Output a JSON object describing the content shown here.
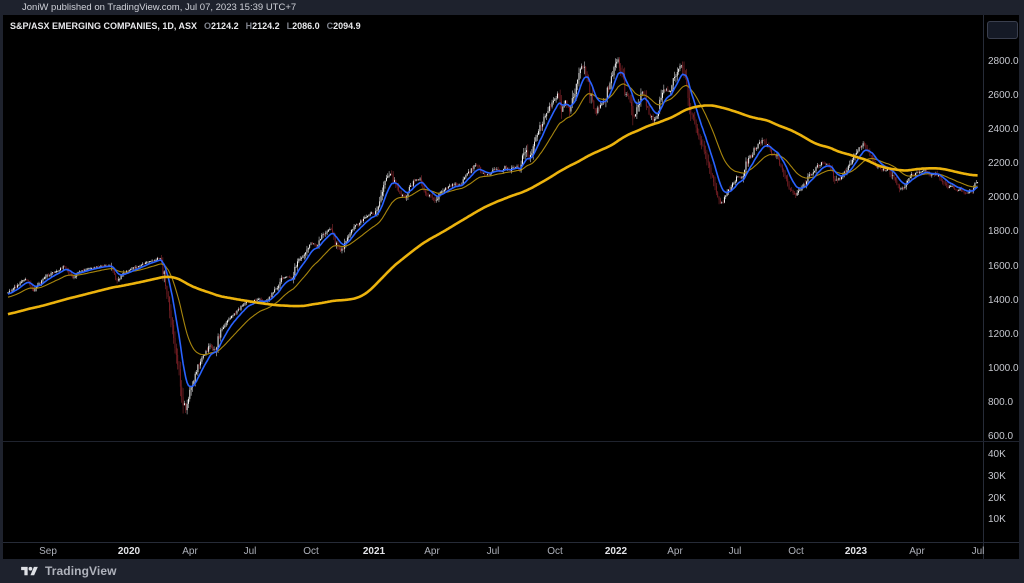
{
  "header": {
    "published_line": "JoniW published on TradingView.com, Jul 07, 2023 15:39 UTC+7"
  },
  "legend": {
    "symbol": "S&P/ASX EMERGING COMPANIES, 1D, ASX",
    "ohlc": [
      {
        "k": "O",
        "v": "2124.2"
      },
      {
        "k": "H",
        "v": "2124.2"
      },
      {
        "k": "L",
        "v": "2086.0"
      },
      {
        "k": "C",
        "v": "2094.9"
      }
    ]
  },
  "footer": {
    "brand": "TradingView"
  },
  "chart_data": {
    "type": "candlestick",
    "title": "S&P/ASX EMERGING COMPANIES",
    "timeframe": "1D",
    "exchange": "ASX",
    "last_ohlc": {
      "o": 2124.2,
      "h": 2124.2,
      "l": 2086.0,
      "c": 2094.9
    },
    "colors": {
      "up": "#ffffff",
      "up_wick": "#d9dadd",
      "down": "#7e1d24",
      "down_wick": "#932b32"
    },
    "price_axis": {
      "ticks": [
        "2800.0",
        "2600.0",
        "2400.0",
        "2200.0",
        "2000.0",
        "1800.0",
        "1600.0",
        "1400.0",
        "1200.0",
        "1000.0",
        "800.0",
        "600.0"
      ],
      "range": [
        600,
        2800
      ]
    },
    "volume_axis": {
      "ticks": [
        [
          "40K",
          455
        ],
        [
          "30K",
          477
        ],
        [
          "20K",
          499
        ],
        [
          "10K",
          520
        ]
      ],
      "bars_visible": false
    },
    "time_axis": {
      "unit": "months since 2019-07",
      "ticks": [
        [
          "Sep",
          2,
          0
        ],
        [
          "2020",
          6,
          1
        ],
        [
          "Apr",
          9,
          0
        ],
        [
          "Jul",
          12,
          0
        ],
        [
          "Oct",
          15,
          0
        ],
        [
          "2021",
          18.1,
          1
        ],
        [
          "Apr",
          21,
          0
        ],
        [
          "Jul",
          24,
          0
        ],
        [
          "Oct",
          27.1,
          0
        ],
        [
          "2022",
          30.1,
          1
        ],
        [
          "Apr",
          33,
          0
        ],
        [
          "Jul",
          36,
          0
        ],
        [
          "Oct",
          39,
          0
        ],
        [
          "2023",
          42,
          1
        ],
        [
          "Apr",
          45,
          0
        ],
        [
          "Jul",
          48,
          0
        ]
      ]
    },
    "overlays": [
      {
        "name": "ma-fast",
        "kind": "ema",
        "span_candles": 10,
        "color": "#2962ff",
        "width": 1.6
      },
      {
        "name": "ma-medium",
        "kind": "ema",
        "span_candles": 30,
        "color": "#a8860d",
        "width": 1.1
      },
      {
        "name": "ma-slow",
        "kind": "sma",
        "span_candles": 142,
        "color": "#ecb30d",
        "width": 2.6
      }
    ],
    "close_path": [
      [
        0,
        1445
      ],
      [
        0.59,
        1500
      ],
      [
        0.89,
        1530
      ],
      [
        1.24,
        1457
      ],
      [
        1.93,
        1545
      ],
      [
        2.48,
        1580
      ],
      [
        2.82,
        1604
      ],
      [
        3.17,
        1532
      ],
      [
        3.56,
        1570
      ],
      [
        4.06,
        1590
      ],
      [
        4.55,
        1600
      ],
      [
        5.05,
        1610
      ],
      [
        5.4,
        1510
      ],
      [
        5.74,
        1560
      ],
      [
        6.19,
        1590
      ],
      [
        6.68,
        1615
      ],
      [
        7.03,
        1632
      ],
      [
        7.38,
        1645
      ],
      [
        7.57,
        1650
      ],
      [
        7.77,
        1515
      ],
      [
        8.02,
        1356
      ],
      [
        8.27,
        1143
      ],
      [
        8.51,
        926
      ],
      [
        8.66,
        808
      ],
      [
        8.81,
        755
      ],
      [
        9.01,
        867
      ],
      [
        9.26,
        967
      ],
      [
        9.5,
        1044
      ],
      [
        9.75,
        1085
      ],
      [
        10,
        1143
      ],
      [
        10.25,
        1103
      ],
      [
        10.5,
        1220
      ],
      [
        10.74,
        1261
      ],
      [
        10.99,
        1297
      ],
      [
        11.29,
        1330
      ],
      [
        11.49,
        1356
      ],
      [
        11.78,
        1400
      ],
      [
        12.08,
        1390
      ],
      [
        12.38,
        1415
      ],
      [
        12.67,
        1385
      ],
      [
        12.97,
        1420
      ],
      [
        13.27,
        1470
      ],
      [
        13.56,
        1535
      ],
      [
        13.86,
        1540
      ],
      [
        14.06,
        1532
      ],
      [
        14.31,
        1625
      ],
      [
        14.6,
        1660
      ],
      [
        14.85,
        1720
      ],
      [
        15.1,
        1735
      ],
      [
        15.3,
        1720
      ],
      [
        15.54,
        1780
      ],
      [
        15.79,
        1812
      ],
      [
        15.99,
        1821
      ],
      [
        16.24,
        1732
      ],
      [
        16.49,
        1685
      ],
      [
        16.73,
        1755
      ],
      [
        16.98,
        1809
      ],
      [
        17.23,
        1840
      ],
      [
        17.48,
        1868
      ],
      [
        17.72,
        1897
      ],
      [
        17.97,
        1912
      ],
      [
        18.17,
        1909
      ],
      [
        18.42,
        2004
      ],
      [
        18.66,
        2086
      ],
      [
        18.91,
        2151
      ],
      [
        19.16,
        2086
      ],
      [
        19.41,
        2033
      ],
      [
        19.65,
        2004
      ],
      [
        19.9,
        2063
      ],
      [
        20.15,
        2104
      ],
      [
        20.4,
        2115
      ],
      [
        20.64,
        2033
      ],
      [
        20.89,
        2016
      ],
      [
        21.14,
        1978
      ],
      [
        21.39,
        2027
      ],
      [
        21.63,
        2057
      ],
      [
        21.88,
        2074
      ],
      [
        22.13,
        2086
      ],
      [
        22.38,
        2074
      ],
      [
        22.62,
        2115
      ],
      [
        22.87,
        2162
      ],
      [
        23.12,
        2203
      ],
      [
        23.37,
        2174
      ],
      [
        23.61,
        2133
      ],
      [
        23.86,
        2146
      ],
      [
        24.11,
        2174
      ],
      [
        24.36,
        2151
      ],
      [
        24.6,
        2180
      ],
      [
        24.85,
        2163
      ],
      [
        25.1,
        2192
      ],
      [
        25.35,
        2163
      ],
      [
        25.59,
        2292
      ],
      [
        25.79,
        2210
      ],
      [
        26.09,
        2358
      ],
      [
        26.34,
        2417
      ],
      [
        26.58,
        2476
      ],
      [
        26.83,
        2535
      ],
      [
        27.08,
        2588
      ],
      [
        27.23,
        2617
      ],
      [
        27.43,
        2517
      ],
      [
        27.57,
        2576
      ],
      [
        27.82,
        2505
      ],
      [
        28.07,
        2635
      ],
      [
        28.32,
        2753
      ],
      [
        28.47,
        2782
      ],
      [
        28.71,
        2676
      ],
      [
        28.91,
        2564
      ],
      [
        29.11,
        2505
      ],
      [
        29.31,
        2547
      ],
      [
        29.55,
        2576
      ],
      [
        29.8,
        2694
      ],
      [
        30.05,
        2771
      ],
      [
        30.2,
        2812
      ],
      [
        30.4,
        2735
      ],
      [
        30.54,
        2635
      ],
      [
        30.79,
        2576
      ],
      [
        30.94,
        2470
      ],
      [
        31.14,
        2535
      ],
      [
        31.34,
        2623
      ],
      [
        31.53,
        2594
      ],
      [
        31.73,
        2505
      ],
      [
        31.93,
        2458
      ],
      [
        32.13,
        2476
      ],
      [
        32.33,
        2588
      ],
      [
        32.52,
        2647
      ],
      [
        32.72,
        2617
      ],
      [
        32.92,
        2694
      ],
      [
        33.12,
        2753
      ],
      [
        33.32,
        2794
      ],
      [
        33.51,
        2712
      ],
      [
        33.71,
        2576
      ],
      [
        33.91,
        2470
      ],
      [
        34.11,
        2399
      ],
      [
        34.31,
        2341
      ],
      [
        34.5,
        2270
      ],
      [
        34.7,
        2182
      ],
      [
        34.9,
        2104
      ],
      [
        35.1,
        2034
      ],
      [
        35.3,
        1969
      ],
      [
        35.5,
        2004
      ],
      [
        35.69,
        2046
      ],
      [
        35.89,
        2087
      ],
      [
        36.09,
        2122
      ],
      [
        36.34,
        2123
      ],
      [
        36.53,
        2205
      ],
      [
        36.73,
        2240
      ],
      [
        36.98,
        2293
      ],
      [
        37.23,
        2323
      ],
      [
        37.43,
        2346
      ],
      [
        37.62,
        2299
      ],
      [
        37.82,
        2264
      ],
      [
        38.02,
        2252
      ],
      [
        38.22,
        2205
      ],
      [
        38.42,
        2135
      ],
      [
        38.61,
        2076
      ],
      [
        38.81,
        2035
      ],
      [
        39.01,
        2017
      ],
      [
        39.21,
        2046
      ],
      [
        39.41,
        2076
      ],
      [
        39.6,
        2123
      ],
      [
        39.8,
        2152
      ],
      [
        40,
        2182
      ],
      [
        40.2,
        2205
      ],
      [
        40.4,
        2211
      ],
      [
        40.59,
        2193
      ],
      [
        40.79,
        2152
      ],
      [
        40.99,
        2094
      ],
      [
        41.19,
        2117
      ],
      [
        41.39,
        2146
      ],
      [
        41.58,
        2176
      ],
      [
        41.78,
        2223
      ],
      [
        41.98,
        2270
      ],
      [
        42.18,
        2299
      ],
      [
        42.38,
        2323
      ],
      [
        42.57,
        2282
      ],
      [
        42.77,
        2234
      ],
      [
        42.97,
        2193
      ],
      [
        43.17,
        2180
      ],
      [
        43.37,
        2164
      ],
      [
        43.56,
        2169
      ],
      [
        43.76,
        2135
      ],
      [
        43.96,
        2088
      ],
      [
        44.16,
        2052
      ],
      [
        44.36,
        2064
      ],
      [
        44.55,
        2105
      ],
      [
        44.75,
        2135
      ],
      [
        44.95,
        2152
      ],
      [
        45.15,
        2158
      ],
      [
        45.35,
        2169
      ],
      [
        45.54,
        2152
      ],
      [
        45.74,
        2135
      ],
      [
        45.94,
        2146
      ],
      [
        46.14,
        2123
      ],
      [
        46.34,
        2088
      ],
      [
        46.53,
        2058
      ],
      [
        46.73,
        2070
      ],
      [
        46.93,
        2046
      ],
      [
        47.13,
        2052
      ],
      [
        47.33,
        2035
      ],
      [
        47.52,
        2029
      ],
      [
        47.72,
        2046
      ],
      [
        47.92,
        2094.9
      ]
    ]
  }
}
